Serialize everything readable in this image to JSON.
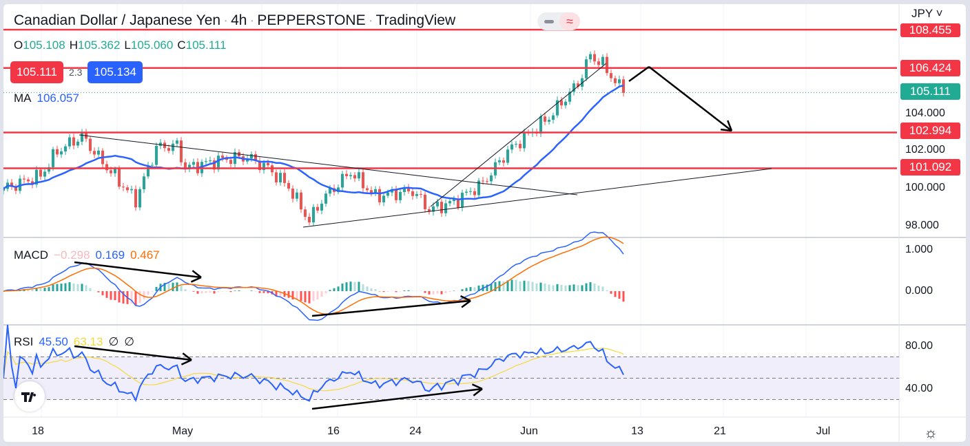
{
  "header": {
    "pair": "Canadian Dollar / Japanese Yen",
    "interval": "4h",
    "broker": "PEPPERSTONE",
    "source": "TradingView",
    "sep": "·"
  },
  "ohlc": {
    "o_label": "O",
    "o": "105.108",
    "h_label": "H",
    "h": "105.362",
    "l_label": "L",
    "l": "105.060",
    "c_label": "C",
    "c": "105.111"
  },
  "bid": "105.111",
  "spread": "2.3",
  "ask": "105.134",
  "ma": {
    "label": "MA",
    "value": "106.057"
  },
  "macd": {
    "label": "MACD",
    "hist": "−0.298",
    "macd": "0.169",
    "signal": "0.467"
  },
  "rsi": {
    "label": "RSI",
    "value": "45.50",
    "ma": "63.13",
    "n1": "∅",
    "n2": "∅"
  },
  "currency": "JPY",
  "price_axis": [
    "104.000",
    "102.000",
    "100.000",
    "98.000"
  ],
  "macd_axis": [
    "1.000",
    "0.000"
  ],
  "rsi_axis": [
    "80.00",
    "40.00"
  ],
  "price_labels": {
    "top": "108.455",
    "l1": "106.424",
    "current": "105.111",
    "l2": "102.994",
    "l3": "101.092"
  },
  "time_axis": [
    "18",
    "May",
    "16",
    "24",
    "Jun",
    "13",
    "21",
    "Jul"
  ],
  "colors": {
    "up": "#26a69a",
    "down": "#ef5350",
    "ma": "#2962ff",
    "level": "#f23645",
    "macd": "#2962ff",
    "signal": "#ff6d00",
    "rsi": "#2962ff",
    "rsi_ma": "#f5d93a"
  },
  "chart_data": {
    "type": "candlestick",
    "title": "Canadian Dollar / Japanese Yen · 4h",
    "ylim": [
      97.5,
      108.8
    ],
    "levels": [
      108.455,
      106.424,
      102.994,
      101.092
    ],
    "current_price": 105.111,
    "close_keypoints": [
      [
        0,
        100.0
      ],
      [
        9,
        100.7
      ],
      [
        13,
        102.0
      ],
      [
        19,
        102.8
      ],
      [
        24,
        101.4
      ],
      [
        32,
        99.4
      ],
      [
        37,
        102.2
      ],
      [
        42,
        102.3
      ],
      [
        44,
        101.1
      ],
      [
        54,
        101.6
      ],
      [
        59,
        101.7
      ],
      [
        64,
        101.1
      ],
      [
        69,
        100.1
      ],
      [
        74,
        98.3
      ],
      [
        77,
        99.4
      ],
      [
        84,
        100.9
      ],
      [
        90,
        99.6
      ],
      [
        99,
        99.9
      ],
      [
        103,
        98.9
      ],
      [
        109,
        99.3
      ],
      [
        116,
        100.3
      ],
      [
        122,
        102.0
      ],
      [
        127,
        102.9
      ],
      [
        132,
        103.8
      ],
      [
        139,
        105.6
      ],
      [
        142,
        107.1
      ],
      [
        145,
        106.6
      ],
      [
        150,
        105.1
      ]
    ],
    "ma_period": 20,
    "macd_params": [
      12,
      26,
      9
    ],
    "rsi_period": 14,
    "macd_ylim": [
      -0.6,
      1.3
    ],
    "rsi_ylim": [
      15,
      100
    ]
  }
}
